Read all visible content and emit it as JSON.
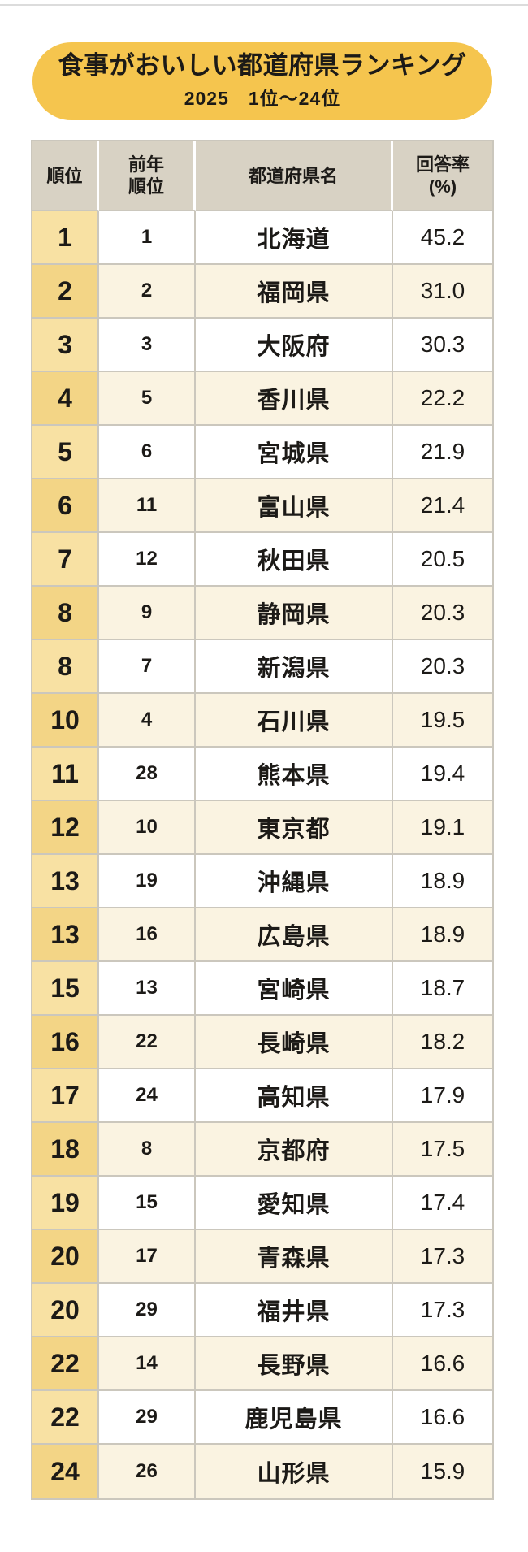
{
  "colors": {
    "banner-bg": "#F5C54E",
    "header-bg": "#D8D2C4",
    "rank-gold-light": "#F8E1A3",
    "rank-gold-dark": "#F3D586",
    "row-white": "#FFFFFF",
    "row-cream": "#FAF3E1",
    "border": "#CBC7BD",
    "text": "#1C1A17",
    "top-line": "#DCDCDC"
  },
  "banner": {
    "title": "食事がおいしい都道府県ランキング",
    "subtitle": "2025　1位～24位"
  },
  "table": {
    "headers": {
      "rank": "順位",
      "prev_rank": "前年\n順位",
      "prefecture": "都道府県名",
      "rate": "回答率\n(%)"
    },
    "rows": [
      {
        "rank": "1",
        "prev": "1",
        "name": "北海道",
        "rate": "45.2"
      },
      {
        "rank": "2",
        "prev": "2",
        "name": "福岡県",
        "rate": "31.0"
      },
      {
        "rank": "3",
        "prev": "3",
        "name": "大阪府",
        "rate": "30.3"
      },
      {
        "rank": "4",
        "prev": "5",
        "name": "香川県",
        "rate": "22.2"
      },
      {
        "rank": "5",
        "prev": "6",
        "name": "宮城県",
        "rate": "21.9"
      },
      {
        "rank": "6",
        "prev": "11",
        "name": "富山県",
        "rate": "21.4"
      },
      {
        "rank": "7",
        "prev": "12",
        "name": "秋田県",
        "rate": "20.5"
      },
      {
        "rank": "8",
        "prev": "9",
        "name": "静岡県",
        "rate": "20.3"
      },
      {
        "rank": "8",
        "prev": "7",
        "name": "新潟県",
        "rate": "20.3"
      },
      {
        "rank": "10",
        "prev": "4",
        "name": "石川県",
        "rate": "19.5"
      },
      {
        "rank": "11",
        "prev": "28",
        "name": "熊本県",
        "rate": "19.4"
      },
      {
        "rank": "12",
        "prev": "10",
        "name": "東京都",
        "rate": "19.1"
      },
      {
        "rank": "13",
        "prev": "19",
        "name": "沖縄県",
        "rate": "18.9"
      },
      {
        "rank": "13",
        "prev": "16",
        "name": "広島県",
        "rate": "18.9"
      },
      {
        "rank": "15",
        "prev": "13",
        "name": "宮崎県",
        "rate": "18.7"
      },
      {
        "rank": "16",
        "prev": "22",
        "name": "長崎県",
        "rate": "18.2"
      },
      {
        "rank": "17",
        "prev": "24",
        "name": "高知県",
        "rate": "17.9"
      },
      {
        "rank": "18",
        "prev": "8",
        "name": "京都府",
        "rate": "17.5"
      },
      {
        "rank": "19",
        "prev": "15",
        "name": "愛知県",
        "rate": "17.4"
      },
      {
        "rank": "20",
        "prev": "17",
        "name": "青森県",
        "rate": "17.3"
      },
      {
        "rank": "20",
        "prev": "29",
        "name": "福井県",
        "rate": "17.3"
      },
      {
        "rank": "22",
        "prev": "14",
        "name": "長野県",
        "rate": "16.6"
      },
      {
        "rank": "22",
        "prev": "29",
        "name": "鹿児島県",
        "rate": "16.6"
      },
      {
        "rank": "24",
        "prev": "26",
        "name": "山形県",
        "rate": "15.9"
      }
    ]
  },
  "chart_data": {
    "type": "table",
    "title": "食事がおいしい都道府県ランキング",
    "subtitle": "2025　1位～24位",
    "columns": [
      "順位",
      "前年順位",
      "都道府県名",
      "回答率(%)"
    ],
    "rows": [
      [
        1,
        1,
        "北海道",
        45.2
      ],
      [
        2,
        2,
        "福岡県",
        31.0
      ],
      [
        3,
        3,
        "大阪府",
        30.3
      ],
      [
        4,
        5,
        "香川県",
        22.2
      ],
      [
        5,
        6,
        "宮城県",
        21.9
      ],
      [
        6,
        11,
        "富山県",
        21.4
      ],
      [
        7,
        12,
        "秋田県",
        20.5
      ],
      [
        8,
        9,
        "静岡県",
        20.3
      ],
      [
        8,
        7,
        "新潟県",
        20.3
      ],
      [
        10,
        4,
        "石川県",
        19.5
      ],
      [
        11,
        28,
        "熊本県",
        19.4
      ],
      [
        12,
        10,
        "東京都",
        19.1
      ],
      [
        13,
        19,
        "沖縄県",
        18.9
      ],
      [
        13,
        16,
        "広島県",
        18.9
      ],
      [
        15,
        13,
        "宮崎県",
        18.7
      ],
      [
        16,
        22,
        "長崎県",
        18.2
      ],
      [
        17,
        24,
        "高知県",
        17.9
      ],
      [
        18,
        8,
        "京都府",
        17.5
      ],
      [
        19,
        15,
        "愛知県",
        17.4
      ],
      [
        20,
        17,
        "青森県",
        17.3
      ],
      [
        20,
        29,
        "福井県",
        17.3
      ],
      [
        22,
        14,
        "長野県",
        16.6
      ],
      [
        22,
        29,
        "鹿児島県",
        16.6
      ],
      [
        24,
        26,
        "山形県",
        15.9
      ]
    ]
  }
}
